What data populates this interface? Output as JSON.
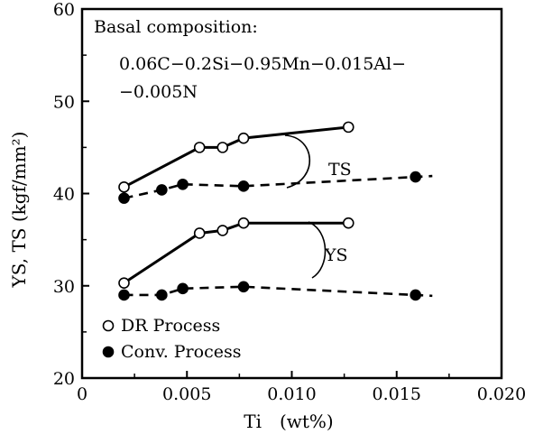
{
  "chart_data": {
    "type": "line",
    "xlabel": "Ti　(wt%)",
    "ylabel": "YS, TS (kgf/mm²)",
    "xlim": [
      0,
      0.02
    ],
    "ylim": [
      20,
      60
    ],
    "x_ticks": [
      "0",
      "0.005",
      "0.010",
      "0.015",
      "0.020"
    ],
    "x_tick_values": [
      0,
      0.005,
      0.01,
      0.015,
      0.02
    ],
    "y_ticks": [
      "20",
      "30",
      "40",
      "50",
      "60"
    ],
    "y_tick_values": [
      20,
      30,
      40,
      50,
      60
    ],
    "annotations": {
      "composition_title": "Basal composition:",
      "composition_line1": "0.06C−0.2Si−0.95Mn−0.015Al−",
      "composition_line2": "−0.005N",
      "ts_label": "TS",
      "ys_label": "YS"
    },
    "legend": {
      "placement": "bottom-left",
      "entries": [
        {
          "marker": "open-circle",
          "label": "DR Process"
        },
        {
          "marker": "filled-circle",
          "label": "Conv. Process"
        }
      ]
    },
    "series": [
      {
        "group": "TS",
        "process": "DR",
        "style": "solid",
        "marker": "open",
        "x": [
          0.002,
          0.0056,
          0.0067,
          0.0077,
          0.0127
        ],
        "y": [
          40.7,
          45.0,
          45.0,
          46.0,
          47.2
        ],
        "line_end_x": 0.0128
      },
      {
        "group": "TS",
        "process": "Conv",
        "style": "dashed",
        "marker": "filled",
        "x": [
          0.002,
          0.0038,
          0.0048,
          0.0077,
          0.0159
        ],
        "y": [
          39.5,
          40.4,
          41.0,
          40.8,
          41.8
        ],
        "line_end_x": 0.0167
      },
      {
        "group": "YS",
        "process": "DR",
        "style": "solid",
        "marker": "open",
        "x": [
          0.002,
          0.0056,
          0.0067,
          0.0077,
          0.0127
        ],
        "y": [
          30.3,
          35.7,
          36.0,
          36.8,
          36.8
        ],
        "line_end_x": 0.0128
      },
      {
        "group": "YS",
        "process": "Conv",
        "style": "dashed",
        "marker": "filled",
        "x": [
          0.002,
          0.0038,
          0.0048,
          0.0077,
          0.0159
        ],
        "y": [
          29.0,
          29.0,
          29.7,
          29.9,
          29.0
        ],
        "line_end_x": 0.0167
      }
    ]
  }
}
